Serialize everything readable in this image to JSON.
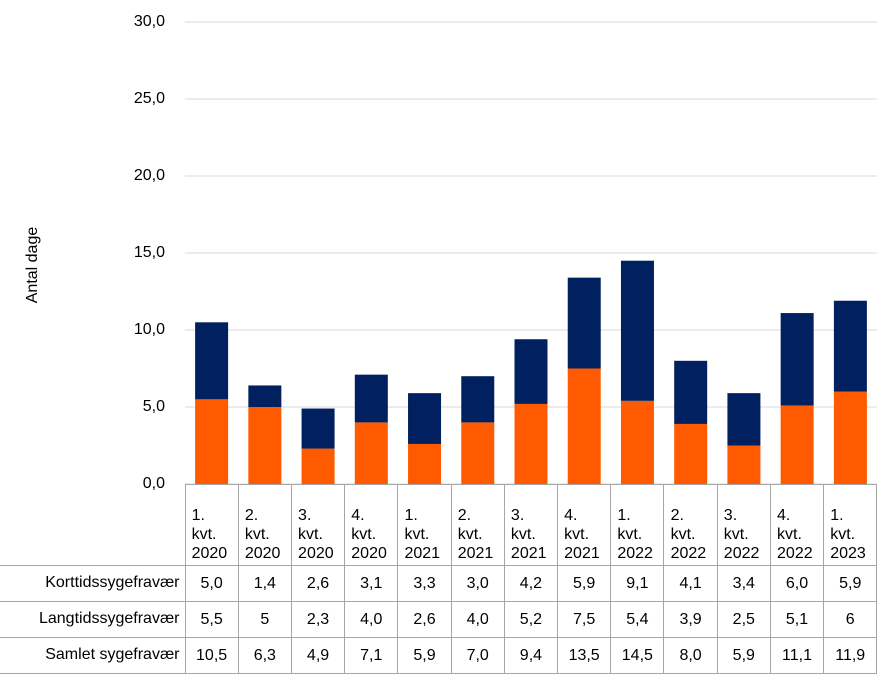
{
  "chart_data": {
    "type": "bar",
    "stacked": true,
    "y_label": "Antal dage",
    "categories": [
      "1. kvt. 2020",
      "2. kvt. 2020",
      "3. kvt. 2020",
      "4. kvt. 2020",
      "1. kvt. 2021",
      "2. kvt. 2021",
      "3. kvt. 2021",
      "4. kvt. 2021",
      "1. kvt. 2022",
      "2. kvt. 2022",
      "3. kvt. 2022",
      "4. kvt. 2022",
      "1. kvt. 2023"
    ],
    "series": [
      {
        "name": "Korttidssygefravær",
        "color": "#002060",
        "values": [
          5.0,
          1.4,
          2.6,
          3.1,
          3.3,
          3.0,
          4.2,
          5.9,
          9.1,
          4.1,
          3.4,
          6.0,
          5.9
        ],
        "value_labels": [
          "5,0",
          "1,4",
          "2,6",
          "3,1",
          "3,3",
          "3,0",
          "4,2",
          "5,9",
          "9,1",
          "4,1",
          "3,4",
          "6,0",
          "5,9"
        ]
      },
      {
        "name": "Langtidssygefravær",
        "color": "#ff5a00",
        "values": [
          5.5,
          5,
          2.3,
          4.0,
          2.6,
          4.0,
          5.2,
          7.5,
          5.4,
          3.9,
          2.5,
          5.1,
          6
        ],
        "value_labels": [
          "5,5",
          "5",
          "2,3",
          "4,0",
          "2,6",
          "4,0",
          "5,2",
          "7,5",
          "5,4",
          "3,9",
          "2,5",
          "5,1",
          "6"
        ]
      },
      {
        "name": "Samlet sygefravær",
        "values": [
          10.5,
          6.3,
          4.9,
          7.1,
          5.9,
          7.0,
          9.4,
          13.5,
          14.5,
          8.0,
          5.9,
          11.1,
          11.9
        ],
        "value_labels": [
          "10,5",
          "6,3",
          "4,9",
          "7,1",
          "5,9",
          "7,0",
          "9,4",
          "13,5",
          "14,5",
          "8,0",
          "5,9",
          "11,1",
          "11,9"
        ]
      }
    ],
    "ylim": [
      0,
      30
    ],
    "yticks": [
      {
        "value": 0,
        "label": "0,0"
      },
      {
        "value": 5,
        "label": "5,0"
      },
      {
        "value": 10,
        "label": "10,0"
      },
      {
        "value": 15,
        "label": "15,0"
      },
      {
        "value": 20,
        "label": "20,0"
      },
      {
        "value": 25,
        "label": "25,0"
      },
      {
        "value": 30,
        "label": "30,0"
      }
    ],
    "grid": true
  }
}
